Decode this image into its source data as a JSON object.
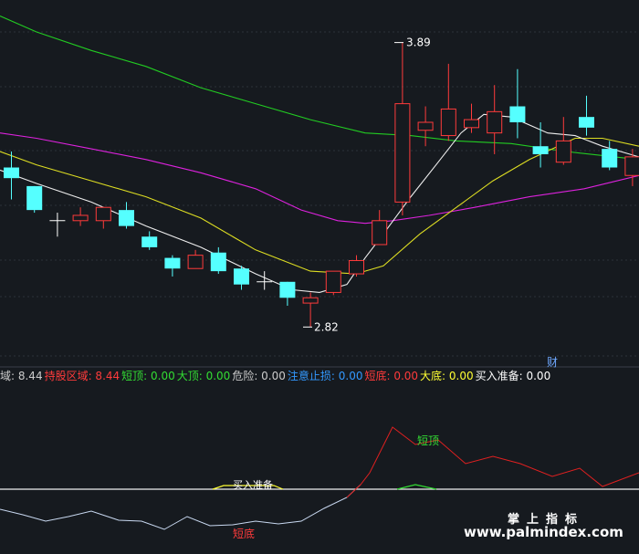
{
  "chart_data": {
    "type": "candlestick",
    "price_scale": {
      "top": 4.05,
      "bottom": 2.67
    },
    "high_label": "3.89",
    "low_label": "2.82",
    "marker_label": "财",
    "candles": [
      {
        "o": 3.42,
        "c": 3.38,
        "h": 3.48,
        "l": 3.3
      },
      {
        "o": 3.35,
        "c": 3.26,
        "h": 3.35,
        "l": 3.25
      },
      {
        "o": 3.22,
        "c": 3.22,
        "h": 3.25,
        "l": 3.16
      },
      {
        "o": 3.22,
        "c": 3.24,
        "h": 3.27,
        "l": 3.2
      },
      {
        "o": 3.22,
        "c": 3.27,
        "h": 3.27,
        "l": 3.19
      },
      {
        "o": 3.26,
        "c": 3.2,
        "h": 3.29,
        "l": 3.19
      },
      {
        "o": 3.16,
        "c": 3.12,
        "h": 3.18,
        "l": 3.11
      },
      {
        "o": 3.08,
        "c": 3.04,
        "h": 3.09,
        "l": 3.01
      },
      {
        "o": 3.04,
        "c": 3.09,
        "h": 3.11,
        "l": 3.04
      },
      {
        "o": 3.1,
        "c": 3.03,
        "h": 3.12,
        "l": 3.02
      },
      {
        "o": 3.04,
        "c": 2.98,
        "h": 3.05,
        "l": 2.96
      },
      {
        "o": 2.99,
        "c": 2.99,
        "h": 3.03,
        "l": 2.96
      },
      {
        "o": 2.99,
        "c": 2.93,
        "h": 2.99,
        "l": 2.9
      },
      {
        "o": 2.91,
        "c": 2.93,
        "h": 2.95,
        "l": 2.82
      },
      {
        "o": 2.95,
        "c": 3.03,
        "h": 3.03,
        "l": 2.94
      },
      {
        "o": 3.02,
        "c": 3.07,
        "h": 3.09,
        "l": 3.01
      },
      {
        "o": 3.13,
        "c": 3.22,
        "h": 3.26,
        "l": 3.13
      },
      {
        "o": 3.29,
        "c": 3.66,
        "h": 3.89,
        "l": 3.24
      },
      {
        "o": 3.56,
        "c": 3.59,
        "h": 3.65,
        "l": 3.5
      },
      {
        "o": 3.54,
        "c": 3.64,
        "h": 3.81,
        "l": 3.52
      },
      {
        "o": 3.57,
        "c": 3.6,
        "h": 3.66,
        "l": 3.55
      },
      {
        "o": 3.55,
        "c": 3.63,
        "h": 3.73,
        "l": 3.47
      },
      {
        "o": 3.65,
        "c": 3.59,
        "h": 3.79,
        "l": 3.53
      },
      {
        "o": 3.5,
        "c": 3.47,
        "h": 3.59,
        "l": 3.42
      },
      {
        "o": 3.44,
        "c": 3.52,
        "h": 3.61,
        "l": 3.43
      },
      {
        "o": 3.61,
        "c": 3.57,
        "h": 3.69,
        "l": 3.54
      },
      {
        "o": 3.49,
        "c": 3.42,
        "h": 3.52,
        "l": 3.41
      },
      {
        "o": 3.39,
        "c": 3.46,
        "h": 3.49,
        "l": 3.35
      }
    ],
    "series": [
      {
        "color": "#22cc22",
        "points": [
          [
            0,
            3.99
          ],
          [
            40,
            3.93
          ],
          [
            100,
            3.86
          ],
          [
            160,
            3.8
          ],
          [
            220,
            3.72
          ],
          [
            280,
            3.66
          ],
          [
            340,
            3.6
          ],
          [
            400,
            3.55
          ],
          [
            450,
            3.54
          ],
          [
            500,
            3.52
          ],
          [
            560,
            3.51
          ],
          [
            620,
            3.48
          ],
          [
            700,
            3.45
          ]
        ]
      },
      {
        "color": "#dd22dd",
        "points": [
          [
            0,
            3.55
          ],
          [
            40,
            3.53
          ],
          [
            100,
            3.49
          ],
          [
            160,
            3.45
          ],
          [
            220,
            3.4
          ],
          [
            280,
            3.34
          ],
          [
            330,
            3.26
          ],
          [
            370,
            3.22
          ],
          [
            400,
            3.21
          ],
          [
            430,
            3.22
          ],
          [
            470,
            3.24
          ],
          [
            520,
            3.27
          ],
          [
            580,
            3.31
          ],
          [
            640,
            3.34
          ],
          [
            700,
            3.39
          ]
        ]
      },
      {
        "color": "#dddd22",
        "points": [
          [
            0,
            3.48
          ],
          [
            40,
            3.43
          ],
          [
            100,
            3.37
          ],
          [
            160,
            3.31
          ],
          [
            220,
            3.23
          ],
          [
            280,
            3.11
          ],
          [
            340,
            3.03
          ],
          [
            390,
            3.02
          ],
          [
            420,
            3.05
          ],
          [
            460,
            3.17
          ],
          [
            500,
            3.27
          ],
          [
            540,
            3.37
          ],
          [
            580,
            3.45
          ],
          [
            630,
            3.53
          ],
          [
            660,
            3.53
          ],
          [
            700,
            3.5
          ]
        ]
      },
      {
        "color": "#eeeeee",
        "points": [
          [
            0,
            3.41
          ],
          [
            40,
            3.36
          ],
          [
            100,
            3.29
          ],
          [
            160,
            3.2
          ],
          [
            220,
            3.12
          ],
          [
            280,
            3.02
          ],
          [
            320,
            2.96
          ],
          [
            350,
            2.95
          ],
          [
            380,
            2.98
          ],
          [
            400,
            3.08
          ],
          [
            420,
            3.17
          ],
          [
            450,
            3.31
          ],
          [
            480,
            3.44
          ],
          [
            505,
            3.55
          ],
          [
            530,
            3.62
          ],
          [
            560,
            3.61
          ],
          [
            600,
            3.55
          ],
          [
            630,
            3.54
          ],
          [
            660,
            3.5
          ],
          [
            700,
            3.46
          ]
        ]
      }
    ],
    "indicator_bar": [
      {
        "text": "域: 8.44",
        "color": "#cccccc"
      },
      {
        "text": "持股区域: 8.44",
        "color": "#ff3b3b"
      },
      {
        "text": "短顶: 0.00",
        "color": "#33dd33"
      },
      {
        "text": "大顶: 0.00",
        "color": "#33dd33"
      },
      {
        "text": "危险: 0.00",
        "color": "#cccccc"
      },
      {
        "text": "注意止损: 0.00",
        "color": "#3399ff"
      },
      {
        "text": "短底: 0.00",
        "color": "#ff3b3b"
      },
      {
        "text": "大底: 0.00",
        "color": "#ffff33"
      },
      {
        "text": "买入准备: 0.00",
        "color": "#ffffff"
      }
    ],
    "sub_chart": {
      "baseline_label": "买入准备",
      "top_label": "短顶",
      "bottom_label": "短底",
      "main_line": [
        [
          0,
          558
        ],
        [
          25,
          564
        ],
        [
          50,
          571
        ],
        [
          75,
          566
        ],
        [
          100,
          560
        ],
        [
          130,
          570
        ],
        [
          155,
          571
        ],
        [
          180,
          580
        ],
        [
          205,
          566
        ],
        [
          230,
          576
        ],
        [
          255,
          575
        ],
        [
          280,
          571
        ],
        [
          305,
          574
        ],
        [
          330,
          571
        ],
        [
          355,
          557
        ],
        [
          380,
          545
        ],
        [
          395,
          531
        ],
        [
          405,
          518
        ],
        [
          430,
          468
        ],
        [
          455,
          487
        ],
        [
          480,
          482
        ],
        [
          510,
          508
        ],
        [
          540,
          500
        ],
        [
          570,
          508
        ],
        [
          605,
          522
        ],
        [
          635,
          513
        ],
        [
          660,
          533
        ],
        [
          700,
          518
        ]
      ]
    },
    "watermark": {
      "line1": "掌上指标",
      "line2": "www.palmindex.com"
    }
  }
}
